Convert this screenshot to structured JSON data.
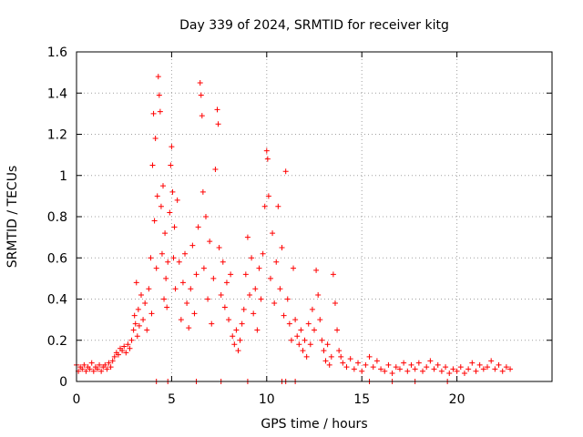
{
  "chart_data": {
    "type": "scatter",
    "title": "Day 339 of 2024, SRMTID for receiver kitg",
    "xlabel": "GPS time / hours",
    "ylabel": "SRMTID / TECUs",
    "xlim": [
      0,
      25
    ],
    "ylim": [
      0,
      1.6
    ],
    "xticks": [
      0,
      5,
      10,
      15,
      20
    ],
    "xtick_labels": [
      "0",
      "5",
      "10",
      "15",
      "20"
    ],
    "yticks": [
      0,
      0.2,
      0.4,
      0.6,
      0.8,
      1.0,
      1.2,
      1.4,
      1.6
    ],
    "ytick_labels": [
      "0",
      "0.2",
      "0.4",
      "0.6",
      "0.8",
      "1",
      "1.2",
      "1.4",
      "1.6"
    ],
    "grid": true,
    "marker": "plus",
    "color": "#ff0000",
    "series": [
      {
        "name": "SRMTID",
        "points": [
          [
            0.0,
            0.08
          ],
          [
            0.1,
            0.05
          ],
          [
            0.2,
            0.07
          ],
          [
            0.3,
            0.06
          ],
          [
            0.4,
            0.08
          ],
          [
            0.5,
            0.05
          ],
          [
            0.6,
            0.07
          ],
          [
            0.7,
            0.06
          ],
          [
            0.8,
            0.09
          ],
          [
            0.9,
            0.05
          ],
          [
            1.0,
            0.07
          ],
          [
            1.1,
            0.06
          ],
          [
            1.2,
            0.08
          ],
          [
            1.3,
            0.05
          ],
          [
            1.4,
            0.07
          ],
          [
            1.5,
            0.08
          ],
          [
            1.6,
            0.06
          ],
          [
            1.7,
            0.09
          ],
          [
            1.8,
            0.07
          ],
          [
            1.9,
            0.1
          ],
          [
            2.0,
            0.12
          ],
          [
            2.1,
            0.14
          ],
          [
            2.2,
            0.13
          ],
          [
            2.3,
            0.16
          ],
          [
            2.4,
            0.15
          ],
          [
            2.5,
            0.17
          ],
          [
            2.6,
            0.14
          ],
          [
            2.7,
            0.18
          ],
          [
            2.8,
            0.16
          ],
          [
            2.9,
            0.2
          ],
          [
            3.0,
            0.25
          ],
          [
            3.05,
            0.32
          ],
          [
            3.1,
            0.28
          ],
          [
            3.15,
            0.48
          ],
          [
            3.2,
            0.22
          ],
          [
            3.25,
            0.35
          ],
          [
            3.3,
            0.27
          ],
          [
            3.4,
            0.42
          ],
          [
            3.5,
            0.3
          ],
          [
            3.6,
            0.38
          ],
          [
            3.7,
            0.25
          ],
          [
            3.8,
            0.45
          ],
          [
            3.9,
            0.6
          ],
          [
            3.95,
            0.33
          ],
          [
            4.0,
            1.05
          ],
          [
            4.05,
            1.3
          ],
          [
            4.1,
            0.78
          ],
          [
            4.15,
            1.18
          ],
          [
            4.2,
            0.55
          ],
          [
            4.25,
            0.9
          ],
          [
            4.3,
            1.48
          ],
          [
            4.35,
            1.39
          ],
          [
            4.4,
            1.31
          ],
          [
            4.45,
            0.85
          ],
          [
            4.5,
            0.62
          ],
          [
            4.55,
            0.95
          ],
          [
            4.6,
            0.4
          ],
          [
            4.65,
            0.72
          ],
          [
            4.7,
            0.5
          ],
          [
            4.75,
            0.36
          ],
          [
            4.8,
            0.58
          ],
          [
            4.9,
            0.82
          ],
          [
            4.95,
            1.05
          ],
          [
            5.0,
            1.14
          ],
          [
            5.05,
            0.92
          ],
          [
            5.1,
            0.6
          ],
          [
            5.15,
            0.75
          ],
          [
            5.2,
            0.45
          ],
          [
            5.3,
            0.88
          ],
          [
            5.4,
            0.58
          ],
          [
            5.5,
            0.3
          ],
          [
            5.6,
            0.48
          ],
          [
            5.7,
            0.62
          ],
          [
            5.8,
            0.38
          ],
          [
            5.9,
            0.26
          ],
          [
            6.0,
            0.45
          ],
          [
            6.1,
            0.66
          ],
          [
            6.2,
            0.33
          ],
          [
            6.3,
            0.52
          ],
          [
            6.4,
            0.75
          ],
          [
            6.5,
            1.45
          ],
          [
            6.55,
            1.39
          ],
          [
            6.6,
            1.29
          ],
          [
            6.65,
            0.92
          ],
          [
            6.7,
            0.55
          ],
          [
            6.8,
            0.8
          ],
          [
            6.9,
            0.4
          ],
          [
            7.0,
            0.68
          ],
          [
            7.1,
            0.28
          ],
          [
            7.2,
            0.5
          ],
          [
            7.3,
            1.03
          ],
          [
            7.4,
            1.32
          ],
          [
            7.45,
            1.25
          ],
          [
            7.5,
            0.65
          ],
          [
            7.6,
            0.42
          ],
          [
            7.7,
            0.58
          ],
          [
            7.8,
            0.36
          ],
          [
            7.9,
            0.48
          ],
          [
            8.0,
            0.3
          ],
          [
            8.1,
            0.52
          ],
          [
            8.2,
            0.22
          ],
          [
            8.3,
            0.18
          ],
          [
            8.4,
            0.25
          ],
          [
            8.5,
            0.15
          ],
          [
            8.6,
            0.2
          ],
          [
            8.7,
            0.28
          ],
          [
            8.8,
            0.35
          ],
          [
            8.9,
            0.52
          ],
          [
            9.0,
            0.7
          ],
          [
            9.1,
            0.42
          ],
          [
            9.2,
            0.6
          ],
          [
            9.3,
            0.33
          ],
          [
            9.4,
            0.45
          ],
          [
            9.5,
            0.25
          ],
          [
            9.6,
            0.55
          ],
          [
            9.7,
            0.4
          ],
          [
            9.8,
            0.62
          ],
          [
            9.9,
            0.85
          ],
          [
            10.0,
            1.12
          ],
          [
            10.05,
            1.08
          ],
          [
            10.1,
            0.9
          ],
          [
            10.2,
            0.5
          ],
          [
            10.3,
            0.72
          ],
          [
            10.4,
            0.38
          ],
          [
            10.5,
            0.58
          ],
          [
            10.6,
            0.85
          ],
          [
            10.7,
            0.45
          ],
          [
            10.8,
            0.65
          ],
          [
            10.9,
            0.32
          ],
          [
            11.0,
            1.02
          ],
          [
            11.1,
            0.4
          ],
          [
            11.2,
            0.28
          ],
          [
            11.3,
            0.2
          ],
          [
            11.4,
            0.55
          ],
          [
            11.5,
            0.3
          ],
          [
            11.6,
            0.22
          ],
          [
            11.7,
            0.18
          ],
          [
            11.8,
            0.25
          ],
          [
            11.9,
            0.15
          ],
          [
            12.0,
            0.2
          ],
          [
            12.1,
            0.12
          ],
          [
            12.2,
            0.28
          ],
          [
            12.3,
            0.18
          ],
          [
            12.4,
            0.35
          ],
          [
            12.5,
            0.25
          ],
          [
            12.6,
            0.54
          ],
          [
            12.7,
            0.42
          ],
          [
            12.8,
            0.3
          ],
          [
            12.9,
            0.2
          ],
          [
            13.0,
            0.15
          ],
          [
            13.1,
            0.1
          ],
          [
            13.2,
            0.18
          ],
          [
            13.3,
            0.08
          ],
          [
            13.4,
            0.12
          ],
          [
            13.5,
            0.52
          ],
          [
            13.6,
            0.38
          ],
          [
            13.7,
            0.25
          ],
          [
            13.8,
            0.15
          ],
          [
            13.9,
            0.12
          ],
          [
            14.0,
            0.09
          ],
          [
            14.2,
            0.07
          ],
          [
            14.4,
            0.11
          ],
          [
            14.6,
            0.06
          ],
          [
            14.8,
            0.09
          ],
          [
            15.0,
            0.05
          ],
          [
            15.2,
            0.08
          ],
          [
            15.4,
            0.12
          ],
          [
            15.6,
            0.07
          ],
          [
            15.8,
            0.1
          ],
          [
            16.0,
            0.06
          ],
          [
            16.2,
            0.05
          ],
          [
            16.4,
            0.08
          ],
          [
            16.6,
            0.04
          ],
          [
            16.8,
            0.07
          ],
          [
            17.0,
            0.06
          ],
          [
            17.2,
            0.09
          ],
          [
            17.4,
            0.05
          ],
          [
            17.6,
            0.08
          ],
          [
            17.8,
            0.06
          ],
          [
            18.0,
            0.09
          ],
          [
            18.2,
            0.05
          ],
          [
            18.4,
            0.07
          ],
          [
            18.6,
            0.1
          ],
          [
            18.8,
            0.06
          ],
          [
            19.0,
            0.08
          ],
          [
            19.2,
            0.05
          ],
          [
            19.4,
            0.07
          ],
          [
            19.6,
            0.04
          ],
          [
            19.8,
            0.06
          ],
          [
            20.0,
            0.05
          ],
          [
            20.2,
            0.07
          ],
          [
            20.4,
            0.04
          ],
          [
            20.6,
            0.06
          ],
          [
            20.8,
            0.09
          ],
          [
            21.0,
            0.05
          ],
          [
            21.2,
            0.08
          ],
          [
            21.4,
            0.06
          ],
          [
            21.6,
            0.07
          ],
          [
            21.8,
            0.1
          ],
          [
            22.0,
            0.06
          ],
          [
            22.2,
            0.08
          ],
          [
            22.4,
            0.05
          ],
          [
            22.6,
            0.07
          ],
          [
            22.8,
            0.06
          ],
          [
            4.2,
            0.0
          ],
          [
            4.8,
            0.0
          ],
          [
            6.3,
            0.0
          ],
          [
            7.6,
            0.0
          ],
          [
            9.0,
            0.0
          ],
          [
            10.8,
            0.0
          ],
          [
            11.0,
            0.0
          ],
          [
            11.5,
            0.0
          ],
          [
            15.4,
            0.0
          ],
          [
            16.6,
            0.0
          ],
          [
            17.8,
            0.0
          ],
          [
            19.5,
            0.0
          ]
        ]
      }
    ]
  }
}
